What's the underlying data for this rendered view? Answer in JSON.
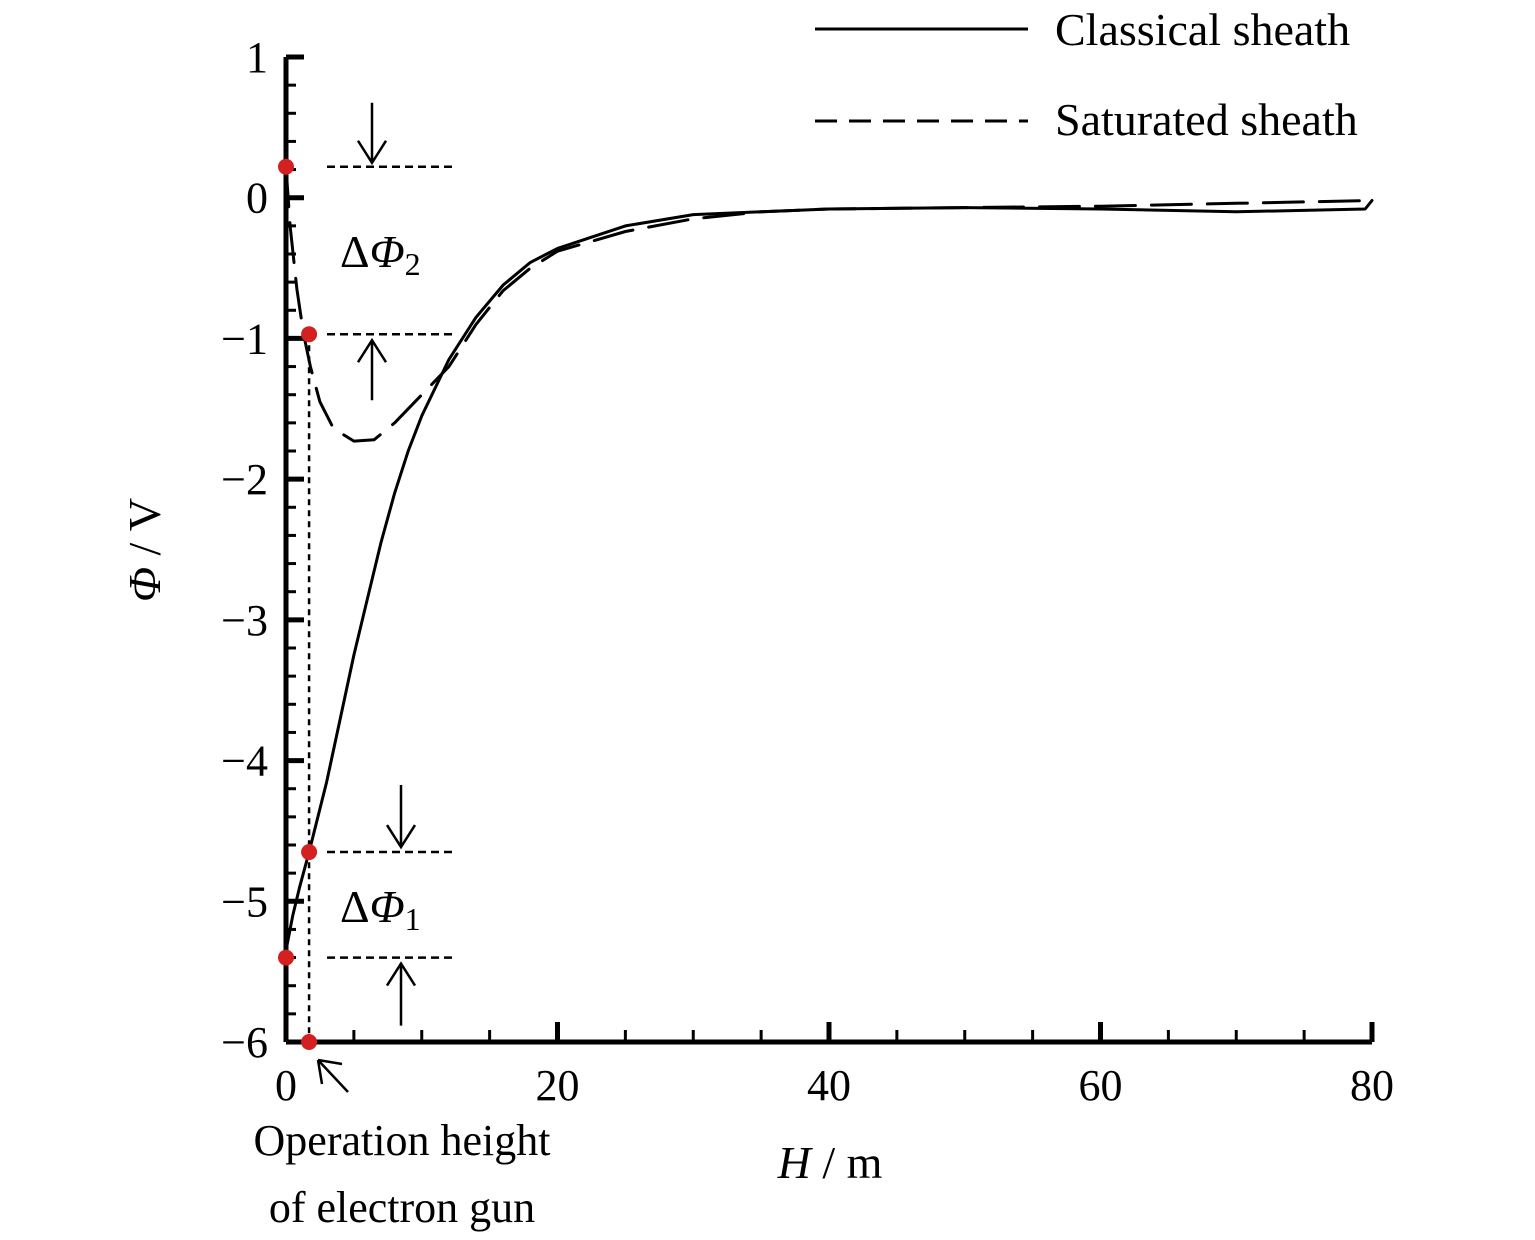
{
  "chart_data": {
    "type": "line",
    "xlabel_var": "H",
    "xlabel_unit": " / m",
    "ylabel_var": "Φ",
    "ylabel_unit": " / V",
    "xlim": [
      0,
      80
    ],
    "ylim": [
      -6,
      1
    ],
    "x_ticks": [
      "0",
      "20",
      "40",
      "60",
      "80"
    ],
    "y_ticks": [
      "1",
      "0",
      "−1",
      "−2",
      "−3",
      "−4",
      "−5",
      "−6"
    ],
    "grid": false,
    "legend_position": "top-right",
    "series": [
      {
        "name": "Classical sheath",
        "style": "solid",
        "color": "#000000",
        "x": [
          0,
          0.5,
          1,
          1.7,
          3,
          4,
          5,
          6,
          7,
          8,
          9,
          10,
          12,
          14,
          16,
          18,
          20,
          25,
          30,
          35,
          40,
          50,
          60,
          70,
          79.5,
          80
        ],
        "y": [
          -5.35,
          -5.1,
          -4.9,
          -4.65,
          -4.15,
          -3.7,
          -3.25,
          -2.85,
          -2.45,
          -2.1,
          -1.8,
          -1.55,
          -1.15,
          -0.85,
          -0.62,
          -0.46,
          -0.36,
          -0.2,
          -0.12,
          -0.1,
          -0.08,
          -0.07,
          -0.08,
          -0.1,
          -0.08,
          -0.02
        ]
      },
      {
        "name": "Saturated sheath",
        "style": "dashed",
        "color": "#000000",
        "x": [
          0,
          0.3,
          0.8,
          1.3,
          1.8,
          2.5,
          3.5,
          5,
          6.5,
          8,
          10,
          12,
          14,
          16,
          18,
          20,
          25,
          30,
          35,
          40,
          50,
          60,
          70,
          80
        ],
        "y": [
          0.22,
          -0.2,
          -0.65,
          -0.97,
          -1.2,
          -1.45,
          -1.64,
          -1.73,
          -1.72,
          -1.6,
          -1.4,
          -1.2,
          -0.9,
          -0.66,
          -0.5,
          -0.38,
          -0.24,
          -0.15,
          -0.1,
          -0.08,
          -0.07,
          -0.06,
          -0.04,
          -0.02
        ]
      }
    ],
    "marked_points": [
      {
        "x": 0,
        "y": 0.22
      },
      {
        "x": 1.7,
        "y": -0.97
      },
      {
        "x": 1.7,
        "y": -4.65
      },
      {
        "x": 0,
        "y": -5.4
      },
      {
        "x": 1.7,
        "y": -6
      }
    ],
    "annotations": {
      "delta_phi_2": {
        "delta": "Δ",
        "var": "Φ",
        "sub": "2",
        "upper": 0.22,
        "lower": -0.97
      },
      "delta_phi_1": {
        "delta": "Δ",
        "var": "Φ",
        "sub": "1",
        "upper": -4.65,
        "lower": -5.4
      },
      "operation_height_line1": "Operation height",
      "operation_height_line2": "of electron gun",
      "operation_height_x": 1.7
    },
    "marker_color": "#d32020"
  }
}
